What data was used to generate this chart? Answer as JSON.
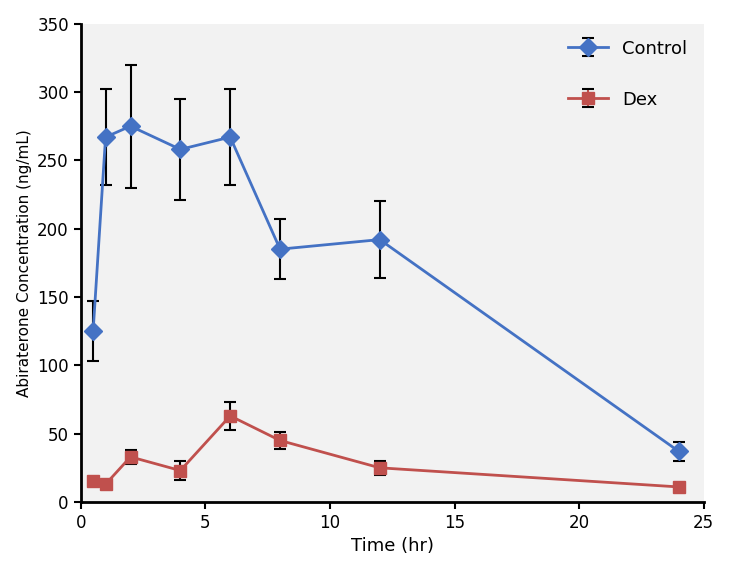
{
  "control_x": [
    0.5,
    1,
    2,
    4,
    6,
    8,
    12,
    24
  ],
  "control_y": [
    125,
    267,
    275,
    258,
    267,
    185,
    192,
    37
  ],
  "control_yerr": [
    22,
    35,
    45,
    37,
    35,
    22,
    28,
    7
  ],
  "dex_x": [
    0.5,
    1,
    2,
    4,
    6,
    8,
    12,
    24
  ],
  "dex_y": [
    15,
    13,
    33,
    23,
    63,
    45,
    25,
    11
  ],
  "dex_yerr": [
    3,
    3,
    5,
    7,
    10,
    6,
    5,
    3
  ],
  "control_color": "#4472C4",
  "dex_color": "#C0504D",
  "xlabel": "Time (hr)",
  "ylabel": "Abiraterone Concentration (ng/mL)",
  "xlim": [
    0,
    25
  ],
  "ylim": [
    0,
    350
  ],
  "xticks": [
    0,
    5,
    10,
    15,
    20,
    25
  ],
  "yticks": [
    0,
    50,
    100,
    150,
    200,
    250,
    300,
    350
  ],
  "legend_labels": [
    "Control",
    "Dex"
  ],
  "control_marker": "D",
  "dex_marker": "s",
  "linewidth": 2.0,
  "markersize": 9,
  "bg_color": "#f2f2f2"
}
